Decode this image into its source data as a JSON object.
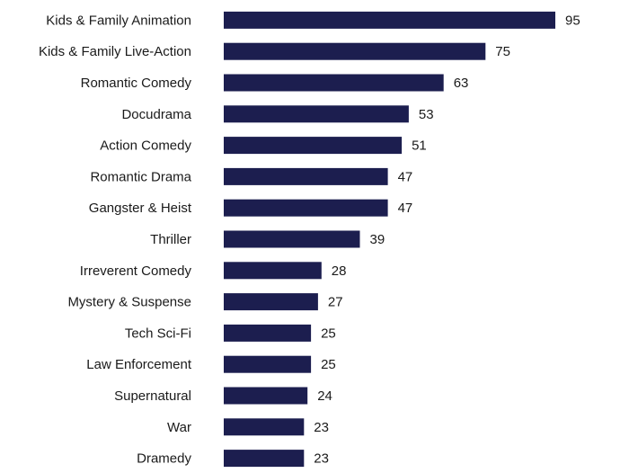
{
  "chart_data": {
    "type": "bar",
    "orientation": "horizontal",
    "categories": [
      "Kids & Family Animation",
      "Kids & Family Live-Action",
      "Romantic Comedy",
      "Docudrama",
      "Action Comedy",
      "Romantic Drama",
      "Gangster & Heist",
      "Thriller",
      "Irreverent Comedy",
      "Mystery & Suspense",
      "Tech Sci-Fi",
      "Law Enforcement",
      "Supernatural",
      "War",
      "Dramedy"
    ],
    "values": [
      95,
      75,
      63,
      53,
      51,
      47,
      47,
      39,
      28,
      27,
      25,
      25,
      24,
      23,
      23
    ],
    "title": "",
    "xlabel": "",
    "ylabel": "",
    "xlim": [
      0,
      95
    ],
    "grid": false,
    "legend": "none",
    "colors": {
      "bar": "#1c1e4f"
    }
  }
}
